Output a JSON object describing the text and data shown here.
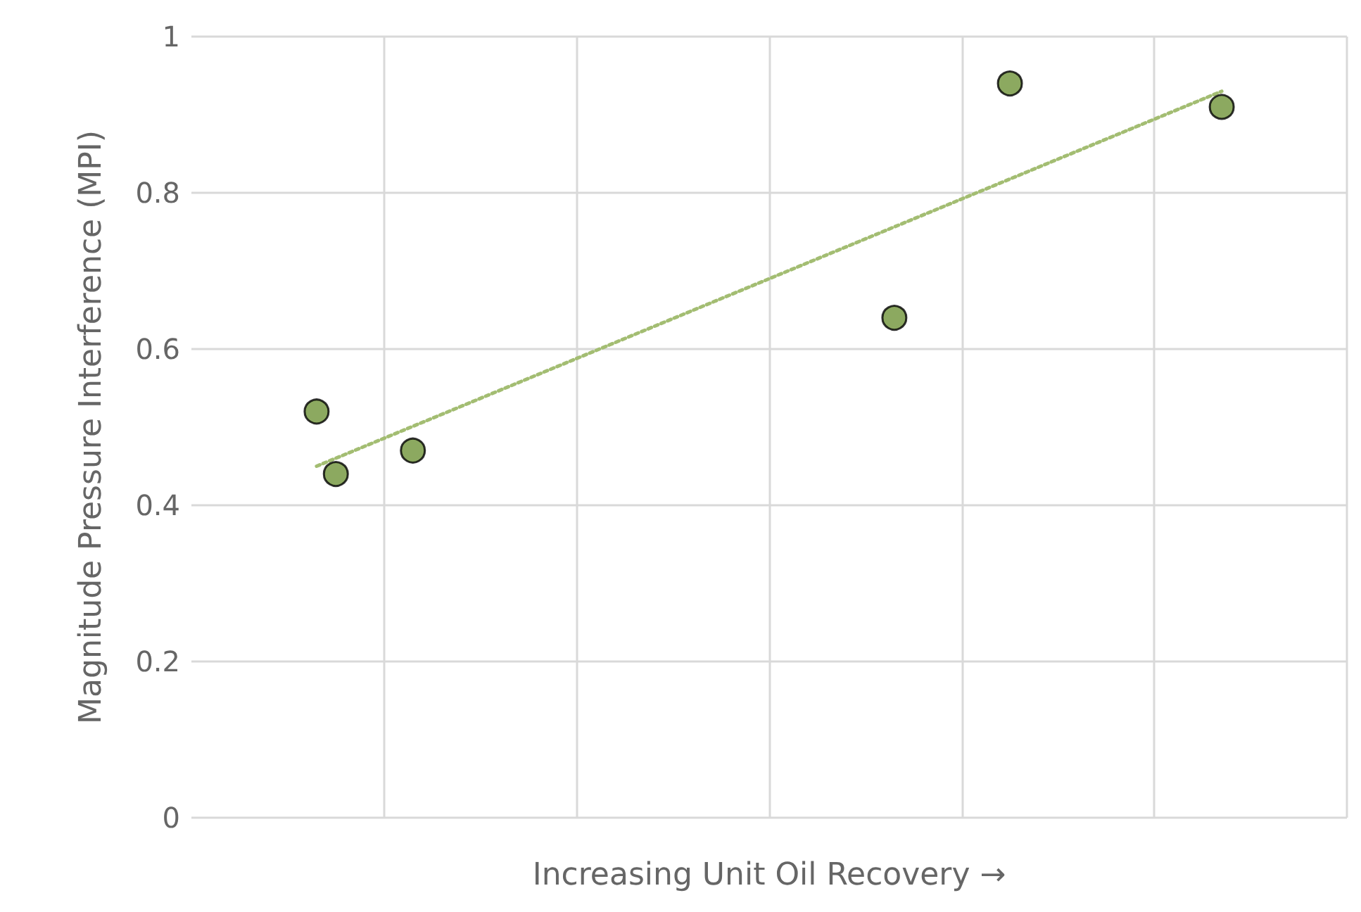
{
  "chart_data": {
    "type": "scatter",
    "xlabel": "Increasing Unit Oil Recovery →",
    "ylabel": "Magnitude Pressure Interference (MPI)",
    "categories": [
      null,
      null,
      null,
      null,
      null,
      null,
      null,
      null,
      null,
      null,
      null,
      null,
      null,
      null,
      null,
      null,
      null,
      null,
      null,
      null,
      null,
      null,
      null,
      null,
      null,
      null,
      null,
      null,
      null,
      null,
      null,
      null,
      null,
      null,
      null,
      null,
      null,
      null,
      null,
      null,
      null,
      null,
      null,
      null,
      null,
      null,
      null,
      null,
      null,
      null,
      null,
      null,
      null,
      null,
      null,
      null,
      null,
      null,
      null,
      null
    ],
    "ylim": [
      0,
      1
    ],
    "yticks": [
      0,
      0.2,
      0.4,
      0.6,
      0.8,
      1
    ],
    "grid": true,
    "tick_labels": "y",
    "series": [
      {
        "color": "#6f9438",
        "marker": "circle",
        "values": [
          null,
          null,
          null,
          null,
          null,
          null,
          0.52,
          0.44,
          null,
          null,
          null,
          0.47,
          null,
          null,
          null,
          null,
          null,
          null,
          null,
          null,
          null,
          null,
          null,
          null,
          null,
          null,
          null,
          null,
          null,
          null,
          null,
          null,
          null,
          null,
          null,
          null,
          0.64,
          null,
          null,
          null,
          null,
          null,
          0.94,
          null,
          null,
          null,
          null,
          null,
          null,
          null,
          null,
          null,
          null,
          0.91,
          null,
          null,
          null,
          null,
          null,
          null
        ]
      },
      {
        "type": "line",
        "color": "#a3bd72",
        "marker": "none",
        "line_style": "dotted",
        "values": [
          null,
          null,
          null,
          null,
          null,
          null,
          0.45,
          null,
          null,
          null,
          null,
          null,
          null,
          null,
          null,
          null,
          null,
          null,
          null,
          null,
          null,
          null,
          null,
          null,
          null,
          null,
          null,
          null,
          null,
          null,
          null,
          null,
          null,
          null,
          null,
          null,
          null,
          null,
          null,
          null,
          null,
          null,
          null,
          null,
          null,
          null,
          null,
          null,
          null,
          null,
          null,
          null,
          null,
          0.93,
          null,
          null,
          null,
          null,
          null,
          null
        ]
      }
    ]
  }
}
